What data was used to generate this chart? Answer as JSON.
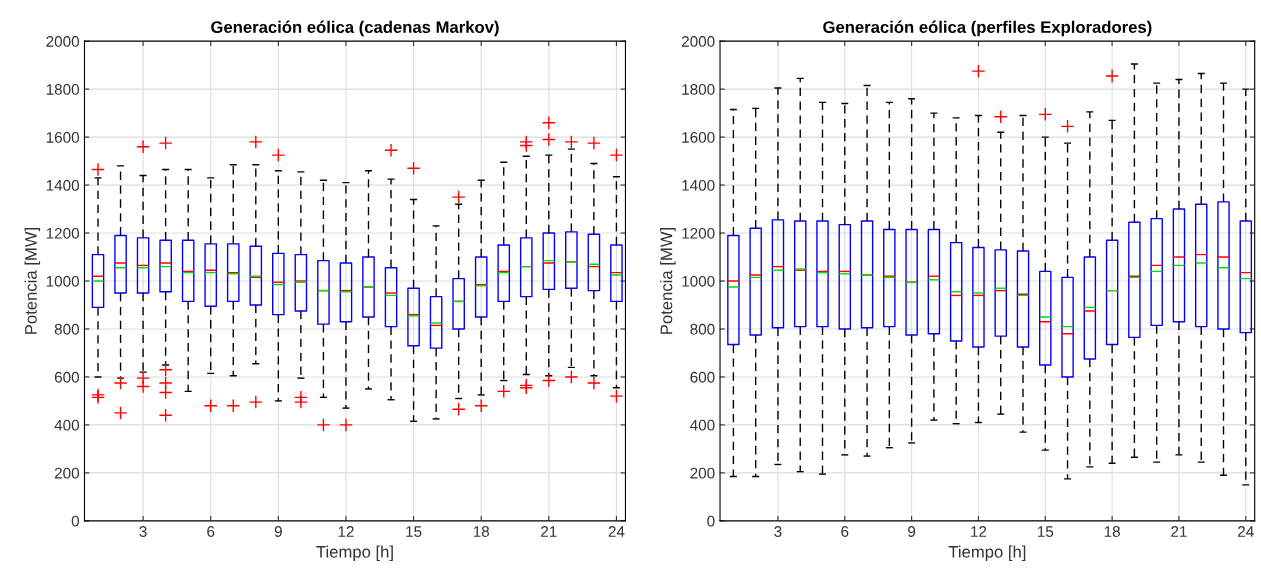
{
  "chart_data": [
    {
      "type": "box",
      "title": "Generación eólica (cadenas Markov)",
      "xlabel": "Tiempo [h]",
      "ylabel": "Potencia [MW]",
      "categories": [
        null,
        null,
        "3",
        null,
        null,
        "6",
        null,
        null,
        "9",
        null,
        null,
        "12",
        null,
        null,
        "15",
        null,
        null,
        "18",
        null,
        null,
        "21",
        null,
        null,
        "24"
      ],
      "ylim": [
        0,
        2000
      ],
      "yticks": [
        0,
        200,
        400,
        600,
        800,
        1000,
        1200,
        1400,
        1600,
        1800,
        2000
      ],
      "grid": true,
      "boxes": [
        {
          "low": 600,
          "q1": 890,
          "median": 1020,
          "q3": 1110,
          "high": 1430,
          "mean": 1000,
          "outliers": [
            1465,
            525,
            515
          ]
        },
        {
          "low": 595,
          "q1": 950,
          "median": 1075,
          "q3": 1190,
          "high": 1480,
          "mean": 1055,
          "outliers": [
            575,
            450
          ]
        },
        {
          "low": 620,
          "q1": 950,
          "median": 1065,
          "q3": 1180,
          "high": 1440,
          "mean": 1055,
          "outliers": [
            1560,
            595,
            560
          ]
        },
        {
          "low": 650,
          "q1": 955,
          "median": 1075,
          "q3": 1170,
          "high": 1465,
          "mean": 1060,
          "outliers": [
            1575,
            630,
            575,
            535,
            440
          ]
        },
        {
          "low": 540,
          "q1": 915,
          "median": 1040,
          "q3": 1170,
          "high": 1465,
          "mean": 1035
        },
        {
          "low": 615,
          "q1": 895,
          "median": 1045,
          "q3": 1155,
          "high": 1430,
          "mean": 1035,
          "outliers": [
            480
          ]
        },
        {
          "low": 605,
          "q1": 915,
          "median": 1035,
          "q3": 1155,
          "high": 1485,
          "mean": 1030,
          "outliers": [
            480
          ]
        },
        {
          "low": 655,
          "q1": 900,
          "median": 1015,
          "q3": 1145,
          "high": 1485,
          "mean": 1020,
          "outliers": [
            1580,
            495
          ]
        },
        {
          "low": 500,
          "q1": 860,
          "median": 995,
          "q3": 1115,
          "high": 1460,
          "mean": 985,
          "outliers": [
            1525
          ]
        },
        {
          "low": 595,
          "q1": 875,
          "median": 1000,
          "q3": 1110,
          "high": 1455,
          "mean": 995,
          "outliers": [
            515,
            495
          ]
        },
        {
          "low": 515,
          "q1": 820,
          "median": 960,
          "q3": 1085,
          "high": 1420,
          "mean": 960,
          "outliers": [
            400
          ]
        },
        {
          "low": 470,
          "q1": 830,
          "median": 960,
          "q3": 1075,
          "high": 1410,
          "mean": 955,
          "outliers": [
            400
          ]
        },
        {
          "low": 550,
          "q1": 850,
          "median": 975,
          "q3": 1100,
          "high": 1460,
          "mean": 975
        },
        {
          "low": 505,
          "q1": 810,
          "median": 950,
          "q3": 1055,
          "high": 1425,
          "mean": 940,
          "outliers": [
            1545
          ]
        },
        {
          "low": 415,
          "q1": 730,
          "median": 860,
          "q3": 970,
          "high": 1340,
          "mean": 855,
          "outliers": [
            1470
          ]
        },
        {
          "low": 425,
          "q1": 720,
          "median": 815,
          "q3": 935,
          "high": 1230,
          "mean": 825
        },
        {
          "low": 510,
          "q1": 800,
          "median": 915,
          "q3": 1010,
          "high": 1320,
          "mean": 915,
          "outliers": [
            1350,
            465
          ]
        },
        {
          "low": 525,
          "q1": 850,
          "median": 985,
          "q3": 1100,
          "high": 1420,
          "mean": 980,
          "outliers": [
            480
          ]
        },
        {
          "low": 585,
          "q1": 915,
          "median": 1040,
          "q3": 1150,
          "high": 1495,
          "mean": 1035,
          "outliers": [
            540
          ]
        },
        {
          "low": 610,
          "q1": 935,
          "median": 1060,
          "q3": 1180,
          "high": 1520,
          "mean": 1060,
          "outliers": [
            1580,
            1565,
            565,
            555
          ]
        },
        {
          "low": 605,
          "q1": 965,
          "median": 1075,
          "q3": 1200,
          "high": 1525,
          "mean": 1085,
          "outliers": [
            1660,
            1590,
            585
          ]
        },
        {
          "low": 640,
          "q1": 970,
          "median": 1080,
          "q3": 1205,
          "high": 1550,
          "mean": 1080,
          "outliers": [
            1580,
            600
          ]
        },
        {
          "low": 605,
          "q1": 960,
          "median": 1060,
          "q3": 1195,
          "high": 1490,
          "mean": 1070,
          "outliers": [
            1575,
            575
          ]
        },
        {
          "low": 555,
          "q1": 915,
          "median": 1035,
          "q3": 1150,
          "high": 1435,
          "mean": 1025,
          "outliers": [
            1525,
            520
          ]
        }
      ]
    },
    {
      "type": "box",
      "title": "Generación eólica (perfiles Exploradores)",
      "xlabel": "Tiempo [h]",
      "ylabel": "Potencia [MW]",
      "categories": [
        null,
        null,
        "3",
        null,
        null,
        "6",
        null,
        null,
        "9",
        null,
        null,
        "12",
        null,
        null,
        "15",
        null,
        null,
        "18",
        null,
        null,
        "21",
        null,
        null,
        "24"
      ],
      "ylim": [
        0,
        2000
      ],
      "yticks": [
        0,
        200,
        400,
        600,
        800,
        1000,
        1200,
        1400,
        1600,
        1800,
        2000
      ],
      "grid": true,
      "boxes": [
        {
          "low": 185,
          "q1": 735,
          "median": 1000,
          "q3": 1190,
          "high": 1715,
          "mean": 975
        },
        {
          "low": 185,
          "q1": 775,
          "median": 1025,
          "q3": 1220,
          "high": 1720,
          "mean": 1015
        },
        {
          "low": 235,
          "q1": 805,
          "median": 1060,
          "q3": 1255,
          "high": 1805,
          "mean": 1045
        },
        {
          "low": 205,
          "q1": 810,
          "median": 1045,
          "q3": 1250,
          "high": 1845,
          "mean": 1050
        },
        {
          "low": 195,
          "q1": 810,
          "median": 1040,
          "q3": 1250,
          "high": 1745,
          "mean": 1035
        },
        {
          "low": 275,
          "q1": 800,
          "median": 1040,
          "q3": 1235,
          "high": 1740,
          "mean": 1030
        },
        {
          "low": 270,
          "q1": 805,
          "median": 1025,
          "q3": 1250,
          "high": 1815,
          "mean": 1025
        },
        {
          "low": 305,
          "q1": 810,
          "median": 1020,
          "q3": 1215,
          "high": 1745,
          "mean": 1015
        },
        {
          "low": 325,
          "q1": 775,
          "median": 995,
          "q3": 1215,
          "high": 1760,
          "mean": 995
        },
        {
          "low": 420,
          "q1": 780,
          "median": 1020,
          "q3": 1215,
          "high": 1700,
          "mean": 1005
        },
        {
          "low": 405,
          "q1": 750,
          "median": 940,
          "q3": 1160,
          "high": 1680,
          "mean": 955
        },
        {
          "low": 410,
          "q1": 725,
          "median": 940,
          "q3": 1140,
          "high": 1690,
          "mean": 950,
          "outliers": [
            1875
          ]
        },
        {
          "low": 445,
          "q1": 770,
          "median": 960,
          "q3": 1130,
          "high": 1620,
          "mean": 970,
          "outliers": [
            1685
          ]
        },
        {
          "low": 370,
          "q1": 725,
          "median": 945,
          "q3": 1125,
          "high": 1690,
          "mean": 940
        },
        {
          "low": 295,
          "q1": 650,
          "median": 830,
          "q3": 1040,
          "high": 1600,
          "mean": 850,
          "outliers": [
            1695
          ]
        },
        {
          "low": 175,
          "q1": 600,
          "median": 780,
          "q3": 1015,
          "high": 1575,
          "mean": 810,
          "outliers": [
            1645
          ]
        },
        {
          "low": 225,
          "q1": 675,
          "median": 875,
          "q3": 1100,
          "high": 1705,
          "mean": 890
        },
        {
          "low": 240,
          "q1": 735,
          "median": 960,
          "q3": 1170,
          "high": 1670,
          "mean": 960,
          "outliers": [
            1855
          ]
        },
        {
          "low": 265,
          "q1": 765,
          "median": 1020,
          "q3": 1245,
          "high": 1905,
          "mean": 1015
        },
        {
          "low": 245,
          "q1": 815,
          "median": 1065,
          "q3": 1260,
          "high": 1825,
          "mean": 1040
        },
        {
          "low": 275,
          "q1": 830,
          "median": 1100,
          "q3": 1300,
          "high": 1840,
          "mean": 1065
        },
        {
          "low": 245,
          "q1": 810,
          "median": 1110,
          "q3": 1320,
          "high": 1865,
          "mean": 1075
        },
        {
          "low": 190,
          "q1": 800,
          "median": 1100,
          "q3": 1330,
          "high": 1825,
          "mean": 1055
        },
        {
          "low": 150,
          "q1": 785,
          "median": 1035,
          "q3": 1250,
          "high": 1800,
          "mean": 1010
        }
      ]
    }
  ]
}
